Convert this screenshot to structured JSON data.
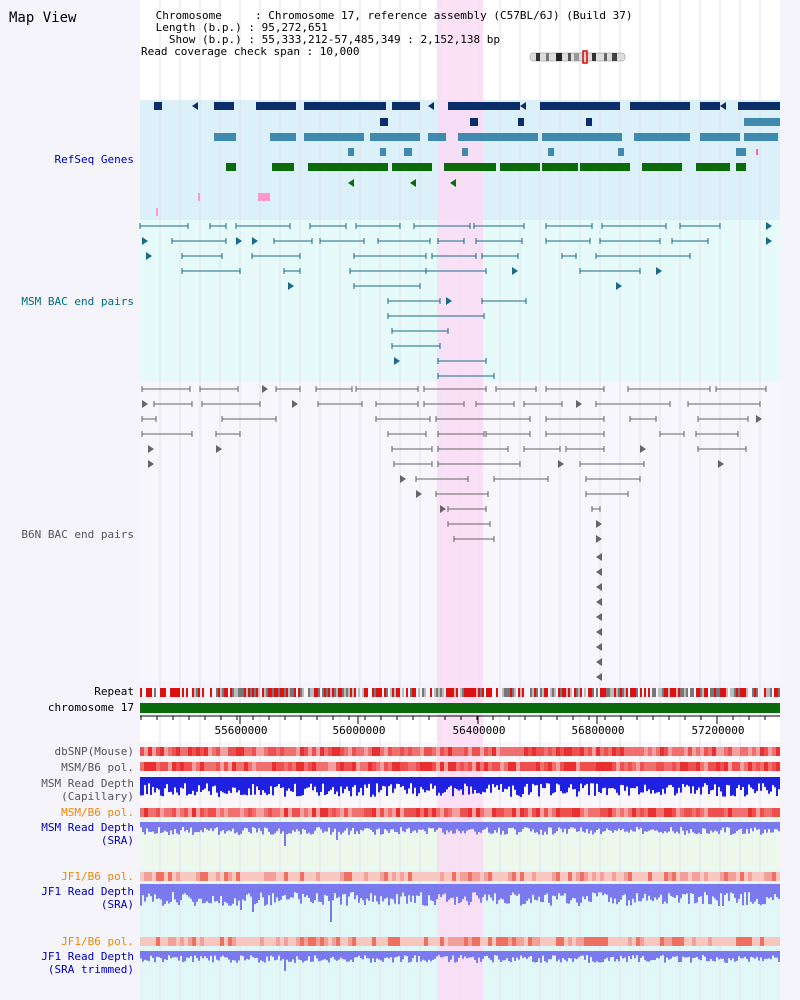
{
  "page": {
    "title": "Map View",
    "info": {
      "chromosome_line": " Chromosome     : Chromosome 17, reference assembly (C57BL/6J) (Build 37)",
      "length_line": " Length (b.p.) : 95,272,651",
      "show_line": "   Show (b.p.) : 55,333,212-57,485,349 : 2,152,138 bp",
      "coverage_line": "Read coverage check span : 10,000"
    }
  },
  "tracks": {
    "refseq": "RefSeq Genes",
    "msm_bac": "MSM BAC end pairs",
    "b6n_bac": "B6N BAC end pairs",
    "repeat": "Repeat",
    "chromosome": "chromosome 17",
    "dbsnp": "dbSNP(Mouse)",
    "msm_b6_pol_1": "MSM/B6 pol.",
    "msm_read_depth_cap_1": "MSM Read Depth",
    "msm_read_depth_cap_2": "(Capillary)",
    "msm_b6_pol_2": "MSM/B6 pol.",
    "msm_read_depth_sra_1": "MSM Read Depth",
    "msm_read_depth_sra_2": "(SRA)",
    "jf1_b6_pol_1": "JF1/B6 pol.",
    "jf1_read_depth_sra_1": "JF1 Read Depth",
    "jf1_read_depth_sra_2": "(SRA)",
    "jf1_b6_pol_2": "JF1/B6 pol.",
    "jf1_read_depth_trim_1": "JF1 Read Depth",
    "jf1_read_depth_trim_2": "(SRA trimmed)"
  },
  "ruler": {
    "ticks": [
      "55600000",
      "56000000",
      "56400000",
      "56800000",
      "57200000"
    ]
  },
  "colors": {
    "refseq_navy": "#0b2e6b",
    "refseq_steel": "#3f8aae",
    "refseq_green": "#0b6b0b",
    "msm_pair": "#1a6b8a",
    "b6n_pair": "#666666",
    "highlight": "#fadcf5",
    "chromosome_bar": "#0b6b0b",
    "read_depth_capillary": "#2020e0",
    "read_depth_sra": "#7a7aee"
  }
}
